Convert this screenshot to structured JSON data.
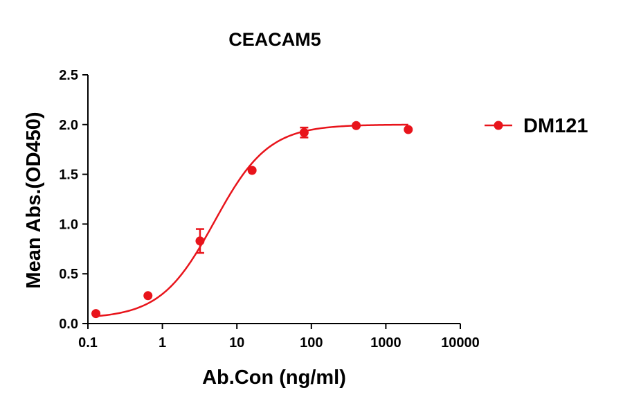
{
  "chart_data": {
    "type": "scatter",
    "title": "CEACAM5",
    "xlabel": "Ab.Con (ng/ml)",
    "ylabel": "Mean Abs.(OD450)",
    "x_scale": "log",
    "xlim": [
      0.1,
      10000
    ],
    "ylim": [
      0,
      2.5
    ],
    "x_ticks": [
      {
        "value": 0.1,
        "label": "0.1"
      },
      {
        "value": 1,
        "label": "1"
      },
      {
        "value": 10,
        "label": "10"
      },
      {
        "value": 100,
        "label": "100"
      },
      {
        "value": 1000,
        "label": "1000"
      },
      {
        "value": 10000,
        "label": "10000"
      }
    ],
    "y_ticks": [
      {
        "value": 0,
        "label": "0.0"
      },
      {
        "value": 0.5,
        "label": "0.5"
      },
      {
        "value": 1,
        "label": "1.0"
      },
      {
        "value": 1.5,
        "label": "1.5"
      },
      {
        "value": 2,
        "label": "2.0"
      },
      {
        "value": 2.5,
        "label": "2.5"
      }
    ],
    "grid": false,
    "legend_position": "right",
    "series": [
      {
        "name": "DM121",
        "color": "#e8141b",
        "points": [
          {
            "x": 0.128,
            "y": 0.1,
            "err": 0.0
          },
          {
            "x": 0.64,
            "y": 0.28,
            "err": 0.0
          },
          {
            "x": 3.2,
            "y": 0.83,
            "err": 0.12
          },
          {
            "x": 16,
            "y": 1.54,
            "err": 0.0
          },
          {
            "x": 80,
            "y": 1.92,
            "err": 0.05
          },
          {
            "x": 400,
            "y": 1.99,
            "err": 0.0
          },
          {
            "x": 2000,
            "y": 1.95,
            "err": 0.0
          }
        ],
        "fit": {
          "model": "4PL",
          "bottom": 0.05,
          "top": 2.0,
          "ec50": 5.0,
          "hill": 1.2
        }
      }
    ]
  }
}
